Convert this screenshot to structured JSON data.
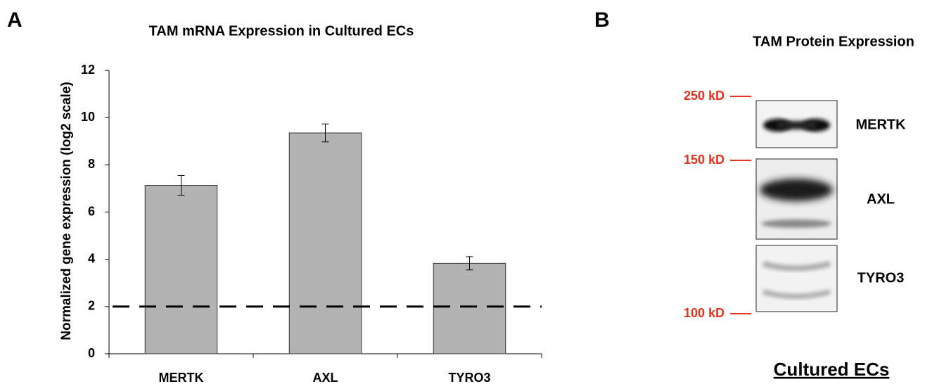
{
  "chart_data": {
    "type": "bar",
    "panel_label": "A",
    "title": "TAM mRNA Expression in Cultured ECs",
    "y_label": "Normalized gene expression (log2 scale)",
    "categories": [
      "MERTK",
      "AXL",
      "TYRO3"
    ],
    "values": [
      7.13,
      9.35,
      3.83
    ],
    "errors": [
      0.42,
      0.38,
      0.28
    ],
    "color": "#b3b3b3",
    "ylim": [
      0,
      12
    ],
    "yticks": [
      0,
      2,
      4,
      6,
      8,
      10,
      12
    ],
    "reference_line": {
      "value": 2,
      "style": "dashed"
    }
  },
  "blot": {
    "panel_label": "B",
    "title": "TAM Protein Expression",
    "markers": [
      "250 kD",
      "150 kD",
      "100 kD"
    ],
    "marker_color": "#e8321e",
    "proteins": [
      "MERTK",
      "AXL",
      "TYRO3"
    ],
    "caption": "Cultured ECs"
  }
}
